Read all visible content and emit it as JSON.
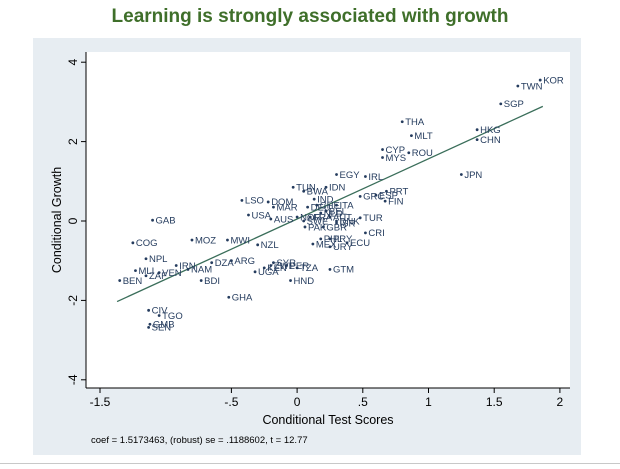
{
  "slide": {
    "title": "Learning is strongly associated with growth"
  },
  "chart_data": {
    "type": "scatter",
    "title": "Learning is strongly associated with growth",
    "xlabel": "Conditional Test Scores",
    "ylabel": "Conditional Growth",
    "xlim": [
      -1.5,
      2
    ],
    "ylim": [
      -4,
      4
    ],
    "xticks": [
      -1.5,
      -0.5,
      0,
      0.5,
      1,
      1.5,
      2
    ],
    "xtick_labels": [
      "-1.5",
      "-.5",
      "0",
      ".5",
      "1",
      "1.5",
      "2"
    ],
    "yticks": [
      -4,
      -2,
      0,
      2,
      4
    ],
    "ytick_labels": [
      "-4",
      "-2",
      "0",
      "2",
      "4"
    ],
    "grid": false,
    "fit_line": {
      "intercept": 0.05,
      "slope": 1.5173463,
      "x_range": [
        -1.37,
        1.87
      ]
    },
    "footnote": "coef = 1.5173463, (robust) se = .1188602, t = 12.77",
    "colors": {
      "marker": "#253c5e",
      "fit_line": "#3a6e5a",
      "panel": "#e7edf2",
      "title": "#3f6f2a"
    },
    "points": [
      {
        "label": "KOR",
        "x": 1.85,
        "y": 3.55
      },
      {
        "label": "TWN",
        "x": 1.68,
        "y": 3.4
      },
      {
        "label": "SGP",
        "x": 1.55,
        "y": 2.95
      },
      {
        "label": "HKG",
        "x": 1.37,
        "y": 2.3
      },
      {
        "label": "CHN",
        "x": 1.37,
        "y": 2.05
      },
      {
        "label": "JPN",
        "x": 1.25,
        "y": 1.17
      },
      {
        "label": "THA",
        "x": 0.8,
        "y": 2.5
      },
      {
        "label": "MLT",
        "x": 0.87,
        "y": 2.15
      },
      {
        "label": "CYP",
        "x": 0.65,
        "y": 1.8
      },
      {
        "label": "ROU",
        "x": 0.85,
        "y": 1.72
      },
      {
        "label": "MYS",
        "x": 0.65,
        "y": 1.6
      },
      {
        "label": "EGY",
        "x": 0.3,
        "y": 1.17
      },
      {
        "label": "IRL",
        "x": 0.52,
        "y": 1.12
      },
      {
        "label": "PRT",
        "x": 0.68,
        "y": 0.75
      },
      {
        "label": "ESP",
        "x": 0.6,
        "y": 0.65
      },
      {
        "label": "FIN",
        "x": 0.67,
        "y": 0.5
      },
      {
        "label": "GRC",
        "x": 0.48,
        "y": 0.62
      },
      {
        "label": "TUN",
        "x": -0.03,
        "y": 0.85
      },
      {
        "label": "IDN",
        "x": 0.22,
        "y": 0.85
      },
      {
        "label": "BWA",
        "x": 0.05,
        "y": 0.75
      },
      {
        "label": "IND",
        "x": 0.13,
        "y": 0.55
      },
      {
        "label": "LSO",
        "x": -0.42,
        "y": 0.52
      },
      {
        "label": "DOM",
        "x": -0.22,
        "y": 0.48
      },
      {
        "label": "MAR",
        "x": -0.18,
        "y": 0.35
      },
      {
        "label": "USA",
        "x": -0.37,
        "y": 0.15
      },
      {
        "label": "AUS",
        "x": -0.2,
        "y": 0.05
      },
      {
        "label": "NOR",
        "x": 0.0,
        "y": 0.1
      },
      {
        "label": "DEU",
        "x": 0.08,
        "y": 0.35
      },
      {
        "label": "CHE",
        "x": 0.15,
        "y": 0.4
      },
      {
        "label": "ITA",
        "x": 0.3,
        "y": 0.4
      },
      {
        "label": "NLD",
        "x": 0.18,
        "y": 0.2
      },
      {
        "label": "FRA",
        "x": 0.1,
        "y": 0.1
      },
      {
        "label": "BEL",
        "x": 0.22,
        "y": 0.25
      },
      {
        "label": "SWE",
        "x": 0.05,
        "y": 0.0
      },
      {
        "label": "AUT",
        "x": 0.25,
        "y": 0.1
      },
      {
        "label": "DNK",
        "x": 0.3,
        "y": 0.0
      },
      {
        "label": "GBR",
        "x": 0.2,
        "y": -0.15
      },
      {
        "label": "ISR",
        "x": 0.3,
        "y": -0.05
      },
      {
        "label": "PAK",
        "x": 0.06,
        "y": -0.15
      },
      {
        "label": "TUR",
        "x": 0.48,
        "y": 0.08
      },
      {
        "label": "CRI",
        "x": 0.52,
        "y": -0.3
      },
      {
        "label": "GAB",
        "x": -1.1,
        "y": 0.02
      },
      {
        "label": "COG",
        "x": -1.25,
        "y": -0.55
      },
      {
        "label": "MOZ",
        "x": -0.8,
        "y": -0.48
      },
      {
        "label": "MWI",
        "x": -0.53,
        "y": -0.48
      },
      {
        "label": "NZL",
        "x": -0.3,
        "y": -0.6
      },
      {
        "label": "PHL",
        "x": 0.18,
        "y": -0.45
      },
      {
        "label": "PRY",
        "x": 0.25,
        "y": -0.45
      },
      {
        "label": "ECU",
        "x": 0.38,
        "y": -0.55
      },
      {
        "label": "MEX",
        "x": 0.12,
        "y": -0.58
      },
      {
        "label": "URY",
        "x": 0.25,
        "y": -0.65
      },
      {
        "label": "NPL",
        "x": -1.15,
        "y": -0.95
      },
      {
        "label": "DZA",
        "x": -0.65,
        "y": -1.05
      },
      {
        "label": "ARG",
        "x": -0.5,
        "y": -1.0
      },
      {
        "label": "IRN",
        "x": -0.92,
        "y": -1.12
      },
      {
        "label": "NAM",
        "x": -0.83,
        "y": -1.22
      },
      {
        "label": "MLI",
        "x": -1.23,
        "y": -1.25
      },
      {
        "label": "ZAF",
        "x": -1.15,
        "y": -1.38
      },
      {
        "label": "VEN",
        "x": -1.05,
        "y": -1.3
      },
      {
        "label": "BEN",
        "x": -1.35,
        "y": -1.5
      },
      {
        "label": "BDI",
        "x": -0.73,
        "y": -1.5
      },
      {
        "label": "ZWE",
        "x": -0.2,
        "y": -1.12
      },
      {
        "label": "SYR",
        "x": -0.18,
        "y": -1.05
      },
      {
        "label": "PER",
        "x": -0.08,
        "y": -1.12
      },
      {
        "label": "UGA",
        "x": -0.32,
        "y": -1.28
      },
      {
        "label": "KEN",
        "x": -0.25,
        "y": -1.18
      },
      {
        "label": "TZA",
        "x": 0.0,
        "y": -1.18
      },
      {
        "label": "GTM",
        "x": 0.25,
        "y": -1.22
      },
      {
        "label": "HND",
        "x": -0.05,
        "y": -1.5
      },
      {
        "label": "GHA",
        "x": -0.52,
        "y": -1.92
      },
      {
        "label": "CIV",
        "x": -1.13,
        "y": -2.25
      },
      {
        "label": "TGO",
        "x": -1.05,
        "y": -2.38
      },
      {
        "label": "GMB",
        "x": -1.12,
        "y": -2.6
      },
      {
        "label": "SEN",
        "x": -1.13,
        "y": -2.68
      }
    ]
  }
}
